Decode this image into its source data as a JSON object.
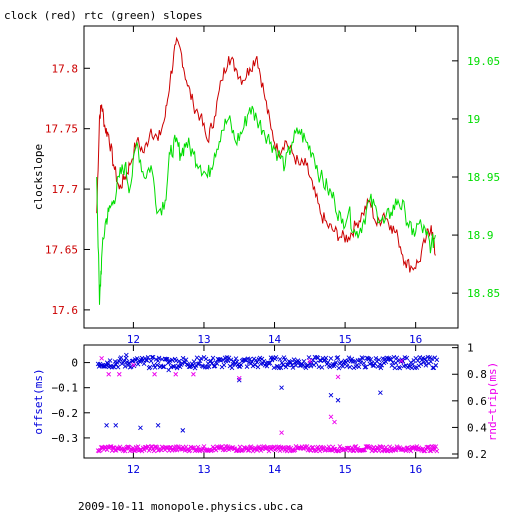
{
  "title": "clock (red) rtc (green) slopes",
  "footer": "2009-10-11 monopole.physics.ubc.ca",
  "colors": {
    "clock": "#cc0000",
    "rtc": "#00dd00",
    "offset": "#0000dd",
    "rndtrip": "#ee00ee",
    "axis": "#000000"
  },
  "chart_data": [
    {
      "type": "line",
      "title": "clock (red) rtc (green) slopes",
      "xlim": [
        11.3,
        16.6
      ],
      "x_ticks": [
        12,
        13,
        14,
        15,
        16
      ],
      "x_tick_labels": [
        "12",
        "13",
        "14",
        "15",
        "16"
      ],
      "ylabel_left": "clockslope",
      "ylim_left": [
        17.585,
        17.835
      ],
      "y_ticks_left": [
        17.6,
        17.65,
        17.7,
        17.75,
        17.8
      ],
      "y_tick_labels_left": [
        "17.6",
        "17.65",
        "17.7",
        "17.75",
        "17.8"
      ],
      "ylim_right": [
        18.82,
        19.08
      ],
      "y_ticks_right": [
        18.85,
        18.9,
        18.95,
        19.0,
        19.05
      ],
      "y_tick_labels_right": [
        "18.85",
        "18.9",
        "18.95",
        "19",
        "19.05"
      ],
      "series": [
        {
          "name": "clock",
          "axis": "left",
          "x": [
            11.48,
            11.52,
            11.55,
            11.6,
            11.65,
            11.72,
            11.8,
            11.88,
            11.95,
            12.05,
            12.15,
            12.25,
            12.35,
            12.45,
            12.52,
            12.6,
            12.67,
            12.75,
            12.85,
            12.95,
            13.05,
            13.15,
            13.25,
            13.35,
            13.45,
            13.55,
            13.65,
            13.75,
            13.85,
            13.95,
            14.05,
            14.15,
            14.25,
            14.35,
            14.45,
            14.55,
            14.65,
            14.75,
            14.85,
            14.95,
            15.05,
            15.15,
            15.25,
            15.35,
            15.45,
            15.55,
            15.65,
            15.75,
            15.85,
            15.95,
            16.05,
            16.15,
            16.22,
            16.28
          ],
          "y": [
            17.68,
            17.76,
            17.77,
            17.75,
            17.745,
            17.72,
            17.7,
            17.71,
            17.72,
            17.74,
            17.73,
            17.75,
            17.74,
            17.76,
            17.79,
            17.82,
            17.815,
            17.79,
            17.77,
            17.76,
            17.74,
            17.76,
            17.79,
            17.81,
            17.8,
            17.79,
            17.8,
            17.81,
            17.78,
            17.75,
            17.73,
            17.74,
            17.73,
            17.72,
            17.72,
            17.7,
            17.68,
            17.67,
            17.665,
            17.66,
            17.66,
            17.67,
            17.68,
            17.69,
            17.67,
            17.68,
            17.67,
            17.66,
            17.64,
            17.635,
            17.64,
            17.66,
            17.67,
            17.645
          ]
        },
        {
          "name": "rtc",
          "axis": "right",
          "x": [
            11.48,
            11.52,
            11.55,
            11.6,
            11.65,
            11.72,
            11.8,
            11.88,
            11.95,
            12.05,
            12.15,
            12.25,
            12.35,
            12.45,
            12.52,
            12.6,
            12.67,
            12.75,
            12.85,
            12.95,
            13.05,
            13.15,
            13.25,
            13.35,
            13.45,
            13.55,
            13.65,
            13.75,
            13.85,
            13.95,
            14.05,
            14.15,
            14.25,
            14.35,
            14.45,
            14.55,
            14.65,
            14.75,
            14.85,
            14.95,
            15.05,
            15.15,
            15.25,
            15.35,
            15.45,
            15.55,
            15.65,
            15.75,
            15.85,
            15.95,
            16.05,
            16.15,
            16.22,
            16.28
          ],
          "y": [
            18.95,
            18.84,
            18.88,
            18.91,
            18.92,
            18.93,
            18.95,
            18.96,
            18.94,
            18.98,
            18.95,
            18.96,
            18.92,
            18.93,
            18.97,
            18.98,
            18.97,
            18.98,
            18.97,
            18.96,
            18.95,
            18.97,
            18.99,
            19.0,
            18.98,
            18.99,
            19.01,
            19.0,
            18.99,
            18.98,
            18.97,
            18.96,
            18.98,
            18.99,
            18.98,
            18.97,
            18.95,
            18.94,
            18.93,
            18.91,
            18.92,
            18.9,
            18.91,
            18.93,
            18.92,
            18.91,
            18.92,
            18.93,
            18.92,
            18.9,
            18.91,
            18.9,
            18.89,
            18.9
          ]
        }
      ]
    },
    {
      "type": "scatter",
      "xlim": [
        11.3,
        16.6
      ],
      "x_ticks": [
        12,
        13,
        14,
        15,
        16
      ],
      "x_tick_labels": [
        "12",
        "13",
        "14",
        "15",
        "16"
      ],
      "ylabel_left": "offset(ms)",
      "ylim_left": [
        -0.38,
        0.07
      ],
      "y_ticks_left": [
        0,
        -0.1,
        -0.2,
        -0.3
      ],
      "y_tick_labels_left": [
        "0",
        "−0.1",
        "−0.2",
        "−0.3"
      ],
      "ylabel_right": "rnd−trip(ms)",
      "ylim_right": [
        0.17,
        1.02
      ],
      "y_ticks_right": [
        0.2,
        0.4,
        0.6,
        0.8,
        1.0
      ],
      "y_tick_labels_right": [
        "0.2",
        "0.4",
        "0.6",
        "0.8",
        "1"
      ],
      "series": [
        {
          "name": "offset",
          "axis": "left",
          "band": {
            "x_start": 11.5,
            "x_end": 16.3,
            "center": 0.0,
            "spread": 0.022
          },
          "outliers": [
            [
              11.62,
              -0.25
            ],
            [
              11.75,
              -0.25
            ],
            [
              12.1,
              -0.26
            ],
            [
              12.35,
              -0.25
            ],
            [
              12.7,
              -0.27
            ],
            [
              13.5,
              -0.07
            ],
            [
              14.1,
              -0.1
            ],
            [
              14.8,
              -0.13
            ],
            [
              14.9,
              -0.15
            ],
            [
              15.5,
              -0.12
            ],
            [
              11.9,
              0.03
            ],
            [
              12.5,
              -0.03
            ]
          ]
        },
        {
          "name": "rnd-trip",
          "axis": "right",
          "band": {
            "x_start": 11.5,
            "x_end": 16.3,
            "center": 0.24,
            "spread": 0.018
          },
          "outliers": [
            [
              11.55,
              0.92
            ],
            [
              11.65,
              0.8
            ],
            [
              11.8,
              0.8
            ],
            [
              12.0,
              0.87
            ],
            [
              12.3,
              0.8
            ],
            [
              12.6,
              0.8
            ],
            [
              12.85,
              0.8
            ],
            [
              13.5,
              0.77
            ],
            [
              14.1,
              0.36
            ],
            [
              14.8,
              0.48
            ],
            [
              14.85,
              0.44
            ],
            [
              14.9,
              0.78
            ],
            [
              15.8,
              0.9
            ],
            [
              14.5,
              0.9
            ]
          ]
        }
      ]
    }
  ]
}
